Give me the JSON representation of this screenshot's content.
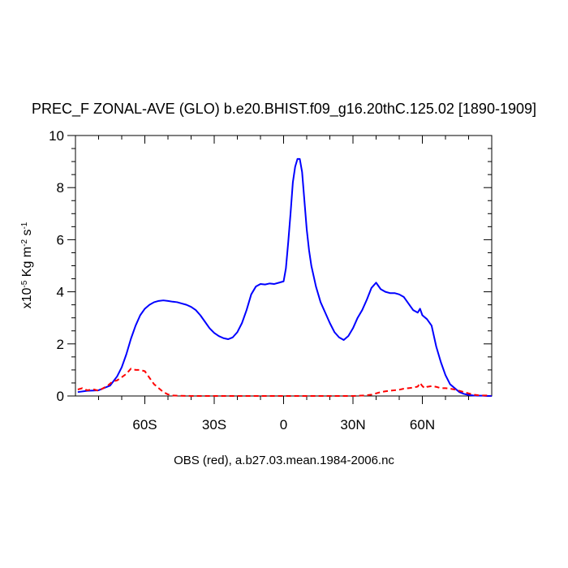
{
  "chart_data": {
    "type": "line",
    "title": "PREC_F ZONAL-AVE (GLO) b.e20.BHIST.f09_g16.20thC.125.02 [1890-1909]",
    "xlabel": "OBS (red), a.b27.03.mean.1984-2006.nc",
    "ylabel": {
      "prefix": "x10",
      "exp1": "-5",
      "mid": " Kg m",
      "exp2": "-2",
      "mid2": " s",
      "exp3": "-1"
    },
    "xlim": [
      -90,
      90
    ],
    "ylim": [
      0,
      10
    ],
    "x_ticks": [
      -60,
      -30,
      0,
      30,
      60
    ],
    "x_tick_labels": [
      "60S",
      "30S",
      "0",
      "30N",
      "60N"
    ],
    "y_ticks": [
      0,
      2,
      4,
      6,
      8,
      10
    ],
    "y_tick_labels": [
      "0",
      "2",
      "4",
      "6",
      "8",
      "10"
    ],
    "grid": false,
    "series": [
      {
        "color": "#0000ff",
        "style": "solid",
        "x": [
          -89,
          -85,
          -80,
          -75,
          -72,
          -70,
          -68,
          -66,
          -64,
          -62,
          -60,
          -58,
          -56,
          -54,
          -52,
          -50,
          -48,
          -46,
          -44,
          -42,
          -40,
          -38,
          -36,
          -34,
          -32,
          -30,
          -28,
          -26,
          -24,
          -22,
          -20,
          -18,
          -16,
          -14,
          -12,
          -10,
          -8,
          -6,
          -4,
          -2,
          0,
          1,
          2,
          3,
          4,
          5,
          6,
          7,
          8,
          9,
          10,
          11,
          12,
          13,
          14,
          15,
          16,
          18,
          20,
          22,
          24,
          26,
          28,
          30,
          32,
          34,
          36,
          38,
          40,
          42,
          44,
          46,
          48,
          50,
          52,
          54,
          56,
          58,
          59,
          60,
          62,
          64,
          66,
          68,
          70,
          72,
          74,
          76,
          78,
          80,
          82,
          84,
          86,
          88,
          90
        ],
        "y": [
          0.15,
          0.2,
          0.22,
          0.4,
          0.75,
          1.1,
          1.6,
          2.2,
          2.7,
          3.1,
          3.35,
          3.5,
          3.6,
          3.65,
          3.67,
          3.65,
          3.62,
          3.6,
          3.55,
          3.5,
          3.42,
          3.3,
          3.1,
          2.85,
          2.6,
          2.42,
          2.3,
          2.22,
          2.18,
          2.25,
          2.45,
          2.8,
          3.3,
          3.9,
          4.2,
          4.3,
          4.28,
          4.32,
          4.3,
          4.35,
          4.4,
          4.9,
          5.9,
          7.0,
          8.2,
          8.8,
          9.1,
          9.1,
          8.6,
          7.5,
          6.4,
          5.6,
          5.0,
          4.6,
          4.2,
          3.9,
          3.6,
          3.2,
          2.8,
          2.45,
          2.25,
          2.15,
          2.3,
          2.6,
          3.0,
          3.3,
          3.7,
          4.15,
          4.35,
          4.1,
          4.0,
          3.95,
          3.95,
          3.9,
          3.8,
          3.55,
          3.3,
          3.2,
          3.35,
          3.1,
          2.95,
          2.7,
          1.9,
          1.3,
          0.8,
          0.45,
          0.3,
          0.15,
          0.08,
          0.04,
          0.02,
          0.01,
          0.01,
          0.0,
          0.0
        ]
      },
      {
        "color": "#ff0000",
        "style": "dashed",
        "x": [
          -89,
          -87,
          -85,
          -82,
          -80,
          -78,
          -76,
          -74,
          -72,
          -70,
          -68,
          -66,
          -64,
          -62,
          -60,
          -58,
          -56,
          -54,
          -52,
          -50,
          -48,
          -45,
          -40,
          -30,
          -20,
          -10,
          0,
          10,
          20,
          30,
          35,
          38,
          40,
          42,
          44,
          46,
          48,
          50,
          52,
          54,
          56,
          58,
          59,
          60,
          61,
          62,
          64,
          66,
          68,
          70,
          72,
          74,
          76,
          78,
          80,
          82,
          84,
          86,
          88,
          89.5
        ],
        "y": [
          0.25,
          0.3,
          0.22,
          0.25,
          0.2,
          0.3,
          0.4,
          0.55,
          0.6,
          0.72,
          0.85,
          1.05,
          1.0,
          1.0,
          0.95,
          0.7,
          0.45,
          0.3,
          0.15,
          0.06,
          0.02,
          0.01,
          0.0,
          0.0,
          0.0,
          0.0,
          0.0,
          0.0,
          0.0,
          0.0,
          0.02,
          0.05,
          0.1,
          0.15,
          0.18,
          0.2,
          0.22,
          0.24,
          0.28,
          0.3,
          0.32,
          0.36,
          0.5,
          0.38,
          0.3,
          0.35,
          0.38,
          0.35,
          0.3,
          0.3,
          0.28,
          0.25,
          0.2,
          0.15,
          0.1,
          0.05,
          0.03,
          0.02,
          0.02,
          0.01
        ]
      }
    ]
  }
}
